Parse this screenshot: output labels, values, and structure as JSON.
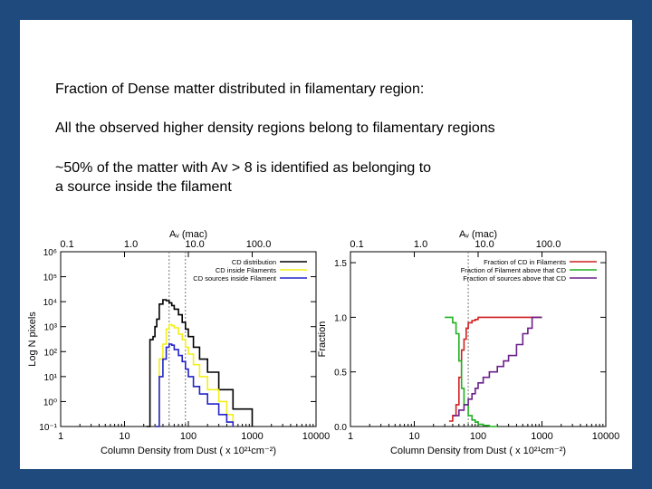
{
  "slide": {
    "lines": [
      "Fraction of Dense matter distributed in filamentary region:",
      "All the observed higher density regions belong to filamentary regions",
      "~50% of the matter with Av > 8 is identified as belonging to",
      "a source inside the filament"
    ]
  },
  "colors": {
    "background": "#1f4a7d",
    "black": "#000000",
    "yellow": "#f2ef18",
    "blue": "#2323c8",
    "red": "#d01f1f",
    "green": "#1fb11f",
    "purple": "#6b1f8a"
  },
  "chart_data": [
    {
      "type": "line",
      "xlabel": "Column Density from Dust ( x 10²¹cm⁻²)",
      "ylabel": "Log N pixels",
      "top_axis_label": "Aᵥ (mac)",
      "x_scale": "log",
      "y_scale": "log",
      "xlim": [
        1,
        10000
      ],
      "ylim": [
        0.1,
        1000000
      ],
      "x_ticks": [
        "1",
        "10",
        "100",
        "1000",
        "10000"
      ],
      "y_ticks": [
        "10⁻¹",
        "10⁰",
        "10¹",
        "10²",
        "10³",
        "10⁴",
        "10⁵",
        "10⁶"
      ],
      "top_ticks": [
        "0.1",
        "1.0",
        "10.0",
        "100.0"
      ],
      "legend_position": "top-right",
      "vlines": [
        50,
        90
      ],
      "series": [
        {
          "name": "CD distribution",
          "color": "black",
          "x": [
            22,
            25,
            28,
            30,
            32,
            35,
            40,
            45,
            50,
            55,
            60,
            70,
            80,
            90,
            100,
            120,
            150,
            200,
            300,
            500,
            1000
          ],
          "y": [
            0.1,
            300,
            400,
            1000,
            2000,
            8000,
            12000,
            11000,
            9000,
            7000,
            5000,
            3000,
            1500,
            800,
            400,
            150,
            50,
            15,
            3,
            0.5,
            0.1
          ]
        },
        {
          "name": "CD inside Filaments",
          "color": "yellow",
          "x": [
            30,
            35,
            40,
            45,
            50,
            55,
            60,
            70,
            80,
            90,
            100,
            120,
            150,
            200,
            300,
            400,
            500
          ],
          "y": [
            0.1,
            50,
            200,
            800,
            1200,
            1100,
            900,
            500,
            300,
            150,
            80,
            30,
            10,
            3,
            1,
            0.3,
            0.1
          ]
        },
        {
          "name": "CD sources inside Filament",
          "color": "blue",
          "x": [
            30,
            35,
            40,
            45,
            50,
            55,
            60,
            70,
            80,
            90,
            100,
            120,
            150,
            200,
            300,
            400,
            500
          ],
          "y": [
            0.1,
            10,
            50,
            150,
            200,
            180,
            120,
            70,
            40,
            20,
            10,
            4,
            2,
            0.8,
            0.3,
            0.15,
            0.1
          ]
        }
      ]
    },
    {
      "type": "line",
      "xlabel": "Column Density from Dust ( x 10²¹cm⁻²)",
      "ylabel": "Fraction",
      "top_axis_label": "Aᵥ (mac)",
      "x_scale": "log",
      "xlim": [
        1,
        10000
      ],
      "ylim": [
        0,
        1.6
      ],
      "x_ticks": [
        "1",
        "10",
        "100",
        "1000",
        "10000"
      ],
      "y_ticks": [
        "0.0",
        "0.5",
        "1.0",
        "1.5"
      ],
      "top_ticks": [
        "0.1",
        "1.0",
        "10.0",
        "100.0"
      ],
      "legend_position": "top-right",
      "vlines": [
        70
      ],
      "series": [
        {
          "name": "Fraction of CD in Filaments",
          "color": "red",
          "x": [
            35,
            40,
            45,
            50,
            55,
            60,
            65,
            70,
            80,
            90,
            100,
            120,
            150,
            200,
            300,
            500,
            1000
          ],
          "y": [
            0.05,
            0.1,
            0.2,
            0.45,
            0.7,
            0.8,
            0.9,
            0.95,
            0.97,
            0.98,
            1.0,
            1.0,
            1.0,
            1.0,
            1.0,
            1.0,
            1.0
          ]
        },
        {
          "name": "Fraction of Filament above that CD",
          "color": "green",
          "x": [
            30,
            35,
            40,
            45,
            50,
            55,
            60,
            70,
            80,
            90,
            100,
            120,
            150,
            200
          ],
          "y": [
            1.0,
            1.0,
            0.95,
            0.85,
            0.6,
            0.35,
            0.2,
            0.1,
            0.06,
            0.04,
            0.02,
            0.01,
            0.0,
            0.0
          ]
        },
        {
          "name": "Fraction of sources above that CD",
          "color": "purple",
          "x": [
            40,
            50,
            60,
            70,
            80,
            90,
            100,
            120,
            150,
            200,
            250,
            300,
            400,
            500,
            600,
            700,
            800,
            1000
          ],
          "y": [
            0.1,
            0.15,
            0.2,
            0.25,
            0.3,
            0.35,
            0.4,
            0.45,
            0.5,
            0.55,
            0.6,
            0.65,
            0.75,
            0.85,
            0.9,
            1.0,
            1.0,
            1.0
          ]
        }
      ]
    }
  ]
}
